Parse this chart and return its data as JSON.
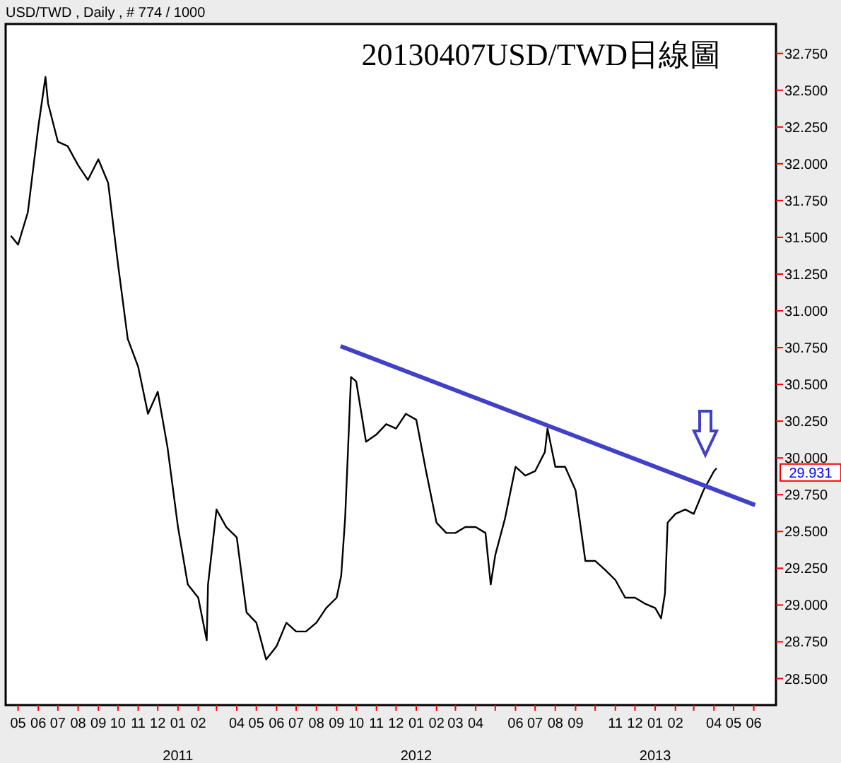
{
  "chart_data": {
    "type": "line",
    "title": "20130407USD/TWD日線圖",
    "subtitle": "USD/TWD , Daily , # 774 / 1000",
    "xlim": [
      "2010-04-12",
      "2013-07-05"
    ],
    "ylim": [
      28.32,
      32.95
    ],
    "xticks": [
      {
        "value": "2010-05-01",
        "label": "05"
      },
      {
        "value": "2010-06-01",
        "label": "06"
      },
      {
        "value": "2010-07-01",
        "label": "07"
      },
      {
        "value": "2010-08-01",
        "label": "08"
      },
      {
        "value": "2010-09-01",
        "label": "09"
      },
      {
        "value": "2010-10-01",
        "label": "10"
      },
      {
        "value": "2010-11-01",
        "label": "11"
      },
      {
        "value": "2010-12-01",
        "label": "12"
      },
      {
        "value": "2011-01-01",
        "label": "01"
      },
      {
        "value": "2011-02-01",
        "label": "02"
      },
      {
        "value": "2011-03-01",
        "label": null
      },
      {
        "value": "2011-04-01",
        "label": "04"
      },
      {
        "value": "2011-05-01",
        "label": "05"
      },
      {
        "value": "2011-06-01",
        "label": "06"
      },
      {
        "value": "2011-07-01",
        "label": "07"
      },
      {
        "value": "2011-08-01",
        "label": "08"
      },
      {
        "value": "2011-09-01",
        "label": "09"
      },
      {
        "value": "2011-10-01",
        "label": "10"
      },
      {
        "value": "2011-11-01",
        "label": "11"
      },
      {
        "value": "2011-12-01",
        "label": "12"
      },
      {
        "value": "2012-01-01",
        "label": "01"
      },
      {
        "value": "2012-02-01",
        "label": "02"
      },
      {
        "value": "2012-03-01",
        "label": "03"
      },
      {
        "value": "2012-04-01",
        "label": "04"
      },
      {
        "value": "2012-05-01",
        "label": null
      },
      {
        "value": "2012-06-01",
        "label": "06"
      },
      {
        "value": "2012-07-01",
        "label": "07"
      },
      {
        "value": "2012-08-01",
        "label": "08"
      },
      {
        "value": "2012-09-01",
        "label": "09"
      },
      {
        "value": "2012-10-01",
        "label": null
      },
      {
        "value": "2012-11-01",
        "label": "11"
      },
      {
        "value": "2012-12-01",
        "label": "12"
      },
      {
        "value": "2013-01-01",
        "label": "01"
      },
      {
        "value": "2013-02-01",
        "label": "02"
      },
      {
        "value": "2013-03-01",
        "label": null
      },
      {
        "value": "2013-04-01",
        "label": "04"
      },
      {
        "value": "2013-05-01",
        "label": "05"
      },
      {
        "value": "2013-06-01",
        "label": "06"
      }
    ],
    "yticks": [
      {
        "value": 28.5,
        "label": "28.500"
      },
      {
        "value": 28.75,
        "label": "28.750"
      },
      {
        "value": 29,
        "label": "29.000"
      },
      {
        "value": 29.25,
        "label": "29.250"
      },
      {
        "value": 29.5,
        "label": "29.500"
      },
      {
        "value": 29.75,
        "label": "29.750"
      },
      {
        "value": 30,
        "label": "30.000"
      },
      {
        "value": 30.25,
        "label": "30.250"
      },
      {
        "value": 30.5,
        "label": "30.500"
      },
      {
        "value": 30.75,
        "label": "30.750"
      },
      {
        "value": 31,
        "label": "31.000"
      },
      {
        "value": 31.25,
        "label": "31.250"
      },
      {
        "value": 31.5,
        "label": "31.500"
      },
      {
        "value": 31.75,
        "label": "31.750"
      },
      {
        "value": 32,
        "label": "32.000"
      },
      {
        "value": 32.25,
        "label": "32.250"
      },
      {
        "value": 32.5,
        "label": "32.500"
      },
      {
        "value": 32.75,
        "label": "32.750"
      }
    ],
    "series": [
      {
        "color": "#000000",
        "x": [
          "2010-04-20",
          "2010-05-01",
          "2010-05-16",
          "2010-06-01",
          "2010-06-12",
          "2010-06-16",
          "2010-07-01",
          "2010-07-16",
          "2010-08-01",
          "2010-08-16",
          "2010-09-01",
          "2010-09-16",
          "2010-10-01",
          "2010-10-16",
          "2010-11-01",
          "2010-11-16",
          "2010-12-01",
          "2010-12-16",
          "2011-01-01",
          "2011-01-16",
          "2011-02-01",
          "2011-02-14",
          "2011-02-16",
          "2011-03-01",
          "2011-03-16",
          "2011-04-01",
          "2011-04-16",
          "2011-05-01",
          "2011-05-16",
          "2011-06-01",
          "2011-06-16",
          "2011-07-01",
          "2011-07-16",
          "2011-08-01",
          "2011-08-16",
          "2011-09-01",
          "2011-09-08",
          "2011-09-14",
          "2011-09-18",
          "2011-09-23",
          "2011-10-01",
          "2011-10-16",
          "2011-11-01",
          "2011-11-16",
          "2011-12-01",
          "2011-12-16",
          "2012-01-01",
          "2012-01-16",
          "2012-02-01",
          "2012-02-16",
          "2012-03-01",
          "2012-03-16",
          "2012-04-01",
          "2012-04-16",
          "2012-04-24",
          "2012-05-01",
          "2012-05-16",
          "2012-06-01",
          "2012-06-16",
          "2012-07-01",
          "2012-07-16",
          "2012-07-20",
          "2012-08-01",
          "2012-08-16",
          "2012-09-01",
          "2012-09-16",
          "2012-10-01",
          "2012-10-16",
          "2012-11-01",
          "2012-11-16",
          "2012-12-01",
          "2012-12-16",
          "2013-01-01",
          "2013-01-10",
          "2013-01-16",
          "2013-01-20",
          "2013-02-01",
          "2013-02-16",
          "2013-03-01",
          "2013-03-16",
          "2013-04-01",
          "2013-04-05"
        ],
        "values": [
          31.51,
          31.45,
          31.67,
          32.25,
          32.59,
          32.41,
          32.15,
          32.12,
          31.99,
          31.89,
          32.03,
          31.87,
          31.32,
          30.81,
          30.62,
          30.3,
          30.45,
          30.07,
          29.53,
          29.14,
          29.05,
          28.76,
          29.14,
          29.65,
          29.53,
          29.46,
          28.95,
          28.88,
          28.63,
          28.72,
          28.88,
          28.82,
          28.82,
          28.88,
          28.98,
          29.05,
          29.2,
          29.59,
          30.01,
          30.55,
          30.52,
          30.11,
          30.16,
          30.23,
          30.2,
          30.3,
          30.26,
          29.91,
          29.56,
          29.49,
          29.49,
          29.53,
          29.53,
          29.49,
          29.14,
          29.34,
          29.59,
          29.94,
          29.88,
          29.91,
          30.04,
          30.2,
          29.94,
          29.94,
          29.78,
          29.3,
          29.3,
          29.24,
          29.17,
          29.05,
          29.05,
          29.01,
          28.98,
          28.91,
          29.08,
          29.56,
          29.62,
          29.65,
          29.62,
          29.78,
          29.91,
          29.93
        ]
      },
      {
        "type": "line",
        "color": "#4040c8",
        "x": [
          "2011-09-07",
          "2013-06-03"
        ],
        "values": [
          30.76,
          29.68
        ]
      }
    ],
    "annotations": [
      "29.931",
      "2011",
      "2012",
      "2013"
    ]
  }
}
